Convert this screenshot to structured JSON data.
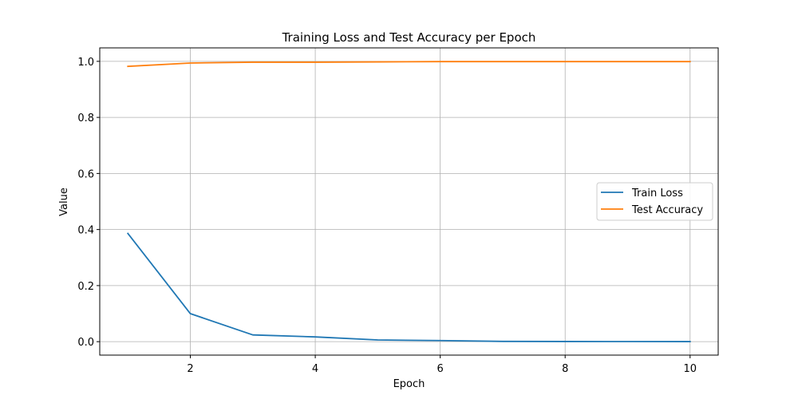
{
  "chart_data": {
    "type": "line",
    "title": "Training Loss and Test Accuracy per Epoch",
    "xlabel": "Epoch",
    "ylabel": "Value",
    "x": [
      1,
      2,
      3,
      4,
      5,
      6,
      7,
      8,
      9,
      10
    ],
    "series": [
      {
        "name": "Train Loss",
        "color": "#1f77b4",
        "values": [
          0.386,
          0.1,
          0.024,
          0.017,
          0.006,
          0.004,
          0.001,
          0.0005,
          0.0003,
          0.0002
        ]
      },
      {
        "name": "Test Accuracy",
        "color": "#ff7f0e",
        "values": [
          0.982,
          0.994,
          0.997,
          0.997,
          0.998,
          0.999,
          0.999,
          0.999,
          0.999,
          0.999
        ]
      }
    ],
    "xlim": [
      0.55,
      10.45
    ],
    "ylim": [
      -0.048,
      1.048
    ],
    "x_ticks": [
      2,
      4,
      6,
      8,
      10
    ],
    "x_tick_labels": [
      "2",
      "4",
      "6",
      "8",
      "10"
    ],
    "y_ticks": [
      0,
      0.2,
      0.4,
      0.6,
      0.8,
      1.0
    ],
    "y_tick_labels": [
      "0.0",
      "0.2",
      "0.4",
      "0.6",
      "0.8",
      "1.0"
    ],
    "grid": true,
    "legend_position": "center-right"
  }
}
